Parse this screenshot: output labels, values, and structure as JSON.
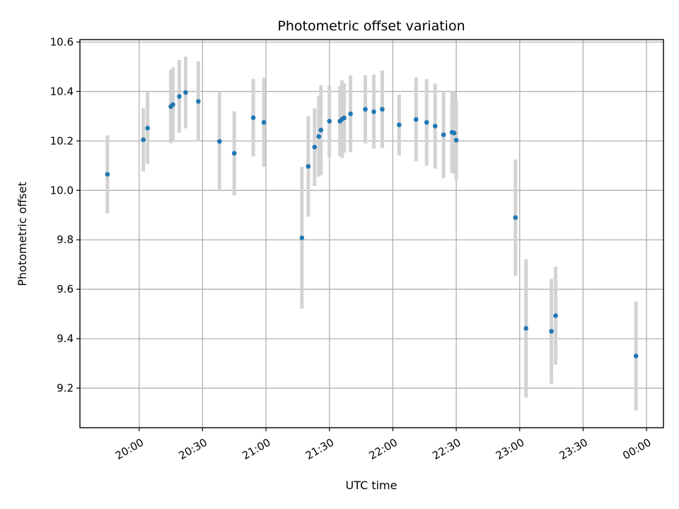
{
  "chart_data": {
    "type": "scatter",
    "title": "Photometric offset variation",
    "xlabel": "UTC time",
    "ylabel": "Photometric offset",
    "x_unit": "UTC",
    "xlim": [
      "19:32",
      "00:08"
    ],
    "ylim": [
      9.04,
      10.61
    ],
    "grid": true,
    "x_ticks": [
      "20:00",
      "20:30",
      "21:00",
      "21:30",
      "22:00",
      "22:30",
      "23:00",
      "23:30",
      "00:00"
    ],
    "y_ticks": [
      "9.2",
      "9.4",
      "9.6",
      "9.8",
      "10.0",
      "10.2",
      "10.4",
      "10.6"
    ],
    "colors": {
      "marker": "#1f77b4",
      "errorbar": "#d3d3d3"
    },
    "series": [
      {
        "points": [
          {
            "x": "19:45",
            "y": 10.065,
            "err": 0.158
          },
          {
            "x": "20:02",
            "y": 10.205,
            "err": 0.128
          },
          {
            "x": "20:04",
            "y": 10.252,
            "err": 0.145
          },
          {
            "x": "20:15",
            "y": 10.339,
            "err": 0.148
          },
          {
            "x": "20:16",
            "y": 10.347,
            "err": 0.15
          },
          {
            "x": "20:19",
            "y": 10.38,
            "err": 0.147
          },
          {
            "x": "20:22",
            "y": 10.396,
            "err": 0.145
          },
          {
            "x": "20:28",
            "y": 10.36,
            "err": 0.162
          },
          {
            "x": "20:38",
            "y": 10.198,
            "err": 0.201
          },
          {
            "x": "20:45",
            "y": 10.15,
            "err": 0.17
          },
          {
            "x": "20:54",
            "y": 10.294,
            "err": 0.157
          },
          {
            "x": "20:59",
            "y": 10.275,
            "err": 0.18
          },
          {
            "x": "21:17",
            "y": 9.808,
            "err": 0.287
          },
          {
            "x": "21:20",
            "y": 10.097,
            "err": 0.203
          },
          {
            "x": "21:23",
            "y": 10.175,
            "err": 0.157
          },
          {
            "x": "21:25",
            "y": 10.218,
            "err": 0.162
          },
          {
            "x": "21:26",
            "y": 10.244,
            "err": 0.182
          },
          {
            "x": "21:30",
            "y": 10.28,
            "err": 0.145
          },
          {
            "x": "21:35",
            "y": 10.28,
            "err": 0.142
          },
          {
            "x": "21:36",
            "y": 10.288,
            "err": 0.157
          },
          {
            "x": "21:37",
            "y": 10.293,
            "err": 0.14
          },
          {
            "x": "21:40",
            "y": 10.31,
            "err": 0.155
          },
          {
            "x": "21:47",
            "y": 10.328,
            "err": 0.138
          },
          {
            "x": "21:51",
            "y": 10.318,
            "err": 0.15
          },
          {
            "x": "21:55",
            "y": 10.328,
            "err": 0.157
          },
          {
            "x": "22:03",
            "y": 10.265,
            "err": 0.123
          },
          {
            "x": "22:11",
            "y": 10.287,
            "err": 0.17
          },
          {
            "x": "22:16",
            "y": 10.275,
            "err": 0.175
          },
          {
            "x": "22:20",
            "y": 10.26,
            "err": 0.172
          },
          {
            "x": "22:24",
            "y": 10.225,
            "err": 0.175
          },
          {
            "x": "22:28",
            "y": 10.235,
            "err": 0.165
          },
          {
            "x": "22:29",
            "y": 10.232,
            "err": 0.165
          },
          {
            "x": "22:30",
            "y": 10.203,
            "err": 0.162
          },
          {
            "x": "22:58",
            "y": 9.89,
            "err": 0.235
          },
          {
            "x": "23:03",
            "y": 9.442,
            "err": 0.28
          },
          {
            "x": "23:15",
            "y": 9.43,
            "err": 0.212
          },
          {
            "x": "23:17",
            "y": 9.493,
            "err": 0.198
          },
          {
            "x": "23:55",
            "y": 9.33,
            "err": 0.22
          }
        ]
      }
    ]
  }
}
